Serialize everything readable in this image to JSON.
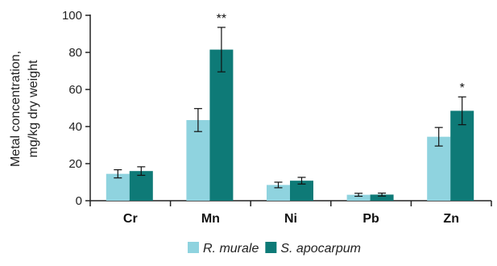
{
  "chart_data": {
    "type": "bar",
    "categories": [
      "Cr",
      "Mn",
      "Ni",
      "Pb",
      "Zn"
    ],
    "ylabel_lines": [
      "Metal concentration,",
      "mg/kg dry weight"
    ],
    "ylim": [
      0,
      100
    ],
    "yticks": [
      0,
      20,
      40,
      60,
      80,
      100
    ],
    "grid": false,
    "legend_position": "bottom",
    "series": [
      {
        "name": "R. murale",
        "color": "#8fd3df",
        "values": [
          14.5,
          43.5,
          8.5,
          3.2,
          34.5
        ],
        "errors": [
          2.2,
          6.2,
          1.5,
          0.8,
          5.0
        ]
      },
      {
        "name": "S. apocarpum",
        "color": "#0e7a77",
        "values": [
          16.0,
          81.5,
          10.8,
          3.3,
          48.5
        ],
        "errors": [
          2.3,
          12.0,
          1.8,
          0.8,
          7.5
        ]
      }
    ],
    "annotations": [
      {
        "category": "Mn",
        "series": "S. apocarpum",
        "text": "**"
      },
      {
        "category": "Zn",
        "series": "S. apocarpum",
        "text": "*"
      }
    ]
  }
}
